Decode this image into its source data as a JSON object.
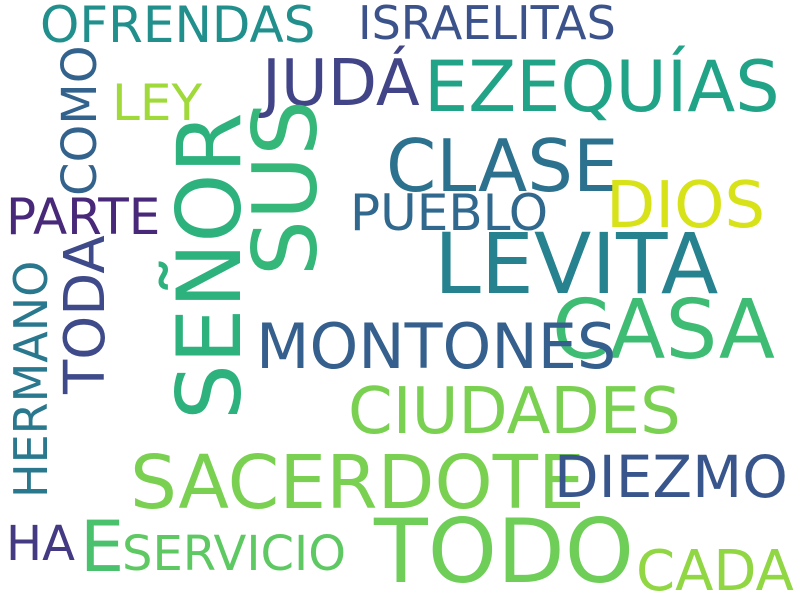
{
  "background": "#ffffff",
  "words": [
    {
      "text": "OFRENDAS",
      "color": "#21908d"
    },
    {
      "text": "ISRAELITAS",
      "color": "#3b528b"
    },
    {
      "text": "JUDÁ",
      "color": "#414487"
    },
    {
      "text": "EZEQUÍAS",
      "color": "#20a386"
    },
    {
      "text": "LEY",
      "color": "#9fda3a"
    },
    {
      "text": "COMO",
      "color": "#33638d"
    },
    {
      "text": "SEÑOR",
      "color": "#2db27d"
    },
    {
      "text": "SUS",
      "color": "#35b779"
    },
    {
      "text": "CLASE",
      "color": "#2c728e"
    },
    {
      "text": "DIOS",
      "color": "#d8e219"
    },
    {
      "text": "PARTE",
      "color": "#482878"
    },
    {
      "text": "PUEBLO",
      "color": "#31688e"
    },
    {
      "text": "LEVITA",
      "color": "#26828e"
    },
    {
      "text": "CASA",
      "color": "#3fbc73"
    },
    {
      "text": "MONTONES",
      "color": "#355f8d"
    },
    {
      "text": "TODA",
      "color": "#3e4a89"
    },
    {
      "text": "HERMANO",
      "color": "#2a788e"
    },
    {
      "text": "CIUDADES",
      "color": "#7ad151"
    },
    {
      "text": "SACERDOTE",
      "color": "#7ad151"
    },
    {
      "text": "DIEZMO",
      "color": "#39568c"
    },
    {
      "text": "HA",
      "color": "#443983"
    },
    {
      "text": "E",
      "color": "#4ac16d"
    },
    {
      "text": "SERVICIO",
      "color": "#5ec962"
    },
    {
      "text": "TODO",
      "color": "#6ece58"
    },
    {
      "text": "CADA",
      "color": "#90d743"
    }
  ]
}
